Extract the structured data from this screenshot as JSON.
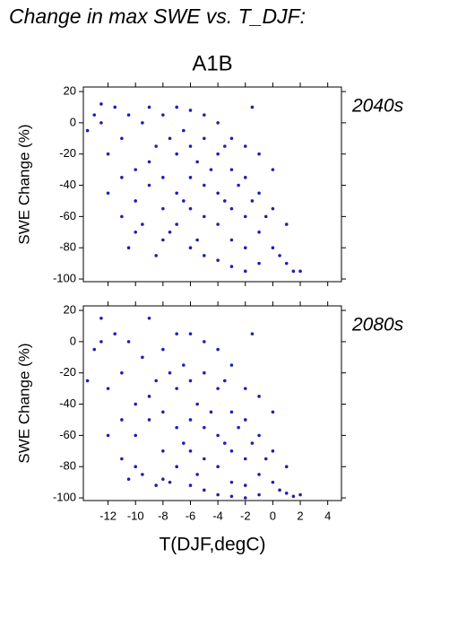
{
  "title": "Change in max SWE vs. T_DJF:",
  "subtitle": "A1B",
  "chart_data": [
    {
      "type": "scatter",
      "annotation": "2040s",
      "ylabel": "SWE Change (%)",
      "color": "#1f1fb4",
      "xlim": [
        -13.8,
        5.0
      ],
      "ylim": [
        -101.7,
        22.9
      ],
      "xticks": [
        -12,
        -10,
        -8,
        -6,
        -4,
        -2,
        0,
        2,
        4
      ],
      "yticks": [
        20,
        0,
        -20,
        -40,
        -60,
        -80,
        -100
      ],
      "x": [
        -13.5,
        -13,
        -12.5,
        -12,
        -12,
        -11.5,
        -11,
        -11,
        -10.5,
        -10,
        -10,
        -10,
        -9.5,
        -9,
        -9,
        -9,
        -8.5,
        -8,
        -8,
        -8,
        -8,
        -7.5,
        -7,
        -7,
        -7,
        -7,
        -6.5,
        -6,
        -6,
        -6,
        -6,
        -6,
        -5.5,
        -5,
        -5,
        -5,
        -5,
        -5,
        -4.5,
        -4,
        -4,
        -4,
        -4,
        -4,
        -3.5,
        -3,
        -3,
        -3,
        -3,
        -3,
        -2.5,
        -2,
        -2,
        -2,
        -2,
        -2,
        -1.5,
        -1,
        -1,
        -1,
        -1,
        -0.5,
        0,
        0,
        0,
        0.5,
        1,
        1,
        1.5,
        2,
        -12.5,
        -11,
        -9.5,
        -7.5,
        -5.5,
        -3.5,
        -1.5,
        -10.5,
        -8.5,
        -6.5
      ],
      "values": [
        -5,
        5,
        0,
        -20,
        -45,
        10,
        -10,
        -60,
        5,
        -30,
        -50,
        -70,
        0,
        10,
        -25,
        -40,
        -15,
        5,
        -35,
        -55,
        -75,
        -10,
        10,
        -20,
        -45,
        -65,
        -5,
        8,
        -15,
        -35,
        -55,
        -80,
        -25,
        5,
        -10,
        -40,
        -60,
        -85,
        -30,
        0,
        -20,
        -45,
        -65,
        -88,
        -50,
        -10,
        -30,
        -55,
        -75,
        -92,
        -40,
        -15,
        -35,
        -60,
        -80,
        -95,
        -50,
        -20,
        -45,
        -70,
        -90,
        -60,
        -30,
        -55,
        -80,
        -85,
        -65,
        -90,
        -95,
        -95,
        12,
        -35,
        -65,
        -70,
        -75,
        -15,
        10,
        -80,
        -85,
        -50
      ]
    },
    {
      "type": "scatter",
      "annotation": "2080s",
      "ylabel": "SWE Change (%)",
      "xlabel": "T(DJF,degC)",
      "color": "#1f1fb4",
      "xlim": [
        -13.8,
        5.0
      ],
      "ylim": [
        -101.7,
        22.9
      ],
      "xticks": [
        -12,
        -10,
        -8,
        -6,
        -4,
        -2,
        0,
        2,
        4
      ],
      "yticks": [
        20,
        0,
        -20,
        -40,
        -60,
        -80,
        -100
      ],
      "x": [
        -13.5,
        -13,
        -12.5,
        -12,
        -12,
        -11.5,
        -11,
        -11,
        -10.5,
        -10,
        -10,
        -10,
        -9.5,
        -9,
        -9,
        -9,
        -8.5,
        -8,
        -8,
        -8,
        -8,
        -7.5,
        -7,
        -7,
        -7,
        -7,
        -6.5,
        -6,
        -6,
        -6,
        -6,
        -6,
        -5.5,
        -5,
        -5,
        -5,
        -5,
        -5,
        -4.5,
        -4,
        -4,
        -4,
        -4,
        -4,
        -3.5,
        -3,
        -3,
        -3,
        -3,
        -3,
        -2.5,
        -2,
        -2,
        -2,
        -2,
        -2,
        -1.5,
        -1,
        -1,
        -1,
        -1,
        -0.5,
        0,
        0,
        0,
        0.5,
        1,
        1,
        1.5,
        2,
        -12.5,
        -11,
        -9.5,
        -7.5,
        -5.5,
        -3.5,
        -1.5,
        -10.5,
        -8.5,
        -6.5
      ],
      "values": [
        -25,
        -5,
        0,
        -30,
        -60,
        5,
        -20,
        -75,
        0,
        -40,
        -60,
        -80,
        -10,
        15,
        -35,
        -50,
        -25,
        -5,
        -45,
        -70,
        -88,
        -20,
        5,
        -30,
        -55,
        -80,
        -15,
        5,
        -25,
        -50,
        -70,
        -92,
        -40,
        0,
        -20,
        -55,
        -75,
        -95,
        -45,
        -5,
        -30,
        -60,
        -80,
        -98,
        -65,
        -15,
        -45,
        -70,
        -90,
        -99,
        -55,
        -30,
        -50,
        -75,
        -92,
        -100,
        -65,
        -35,
        -60,
        -85,
        -98,
        -75,
        -45,
        -70,
        -90,
        -95,
        -80,
        -97,
        -99,
        -98,
        15,
        -50,
        -85,
        -90,
        -85,
        -25,
        5,
        -88,
        -92,
        -65
      ]
    }
  ]
}
